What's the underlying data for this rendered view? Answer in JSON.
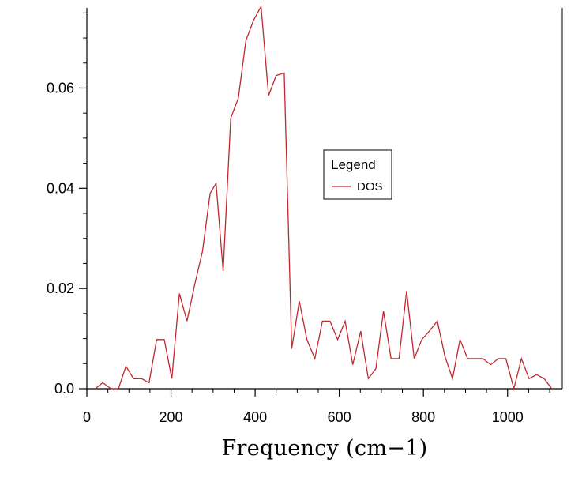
{
  "chart_data": {
    "type": "line",
    "title": "",
    "xlabel": "Frequency (cm−1)",
    "ylabel": "",
    "xlim": [
      0,
      1130
    ],
    "ylim": [
      0,
      0.076
    ],
    "xticks": [
      0,
      200,
      400,
      600,
      800,
      1000
    ],
    "yticks": [
      0.0,
      0.02,
      0.04,
      0.06
    ],
    "xtick_labels": [
      "0",
      "200",
      "400",
      "600",
      "800",
      "1000"
    ],
    "ytick_labels": [
      "0.0",
      "0.02",
      "0.04",
      "0.06"
    ],
    "grid": false,
    "legend": {
      "title": "Legend",
      "placement": "center-right",
      "entries": [
        "DOS"
      ]
    },
    "series": [
      {
        "name": "DOS",
        "color": "#c0282d",
        "x": [
          20,
          38,
          57,
          75,
          93,
          111,
          130,
          148,
          166,
          184,
          202,
          220,
          238,
          257,
          275,
          293,
          307,
          324,
          342,
          360,
          378,
          396,
          414,
          432,
          450,
          469,
          487,
          505,
          523,
          542,
          560,
          578,
          596,
          614,
          632,
          651,
          669,
          687,
          705,
          723,
          742,
          760,
          778,
          796,
          814,
          833,
          851,
          869,
          887,
          905,
          923,
          941,
          960,
          978,
          996,
          1015,
          1033,
          1051,
          1069,
          1087,
          1105
        ],
        "values": [
          0.0,
          0.0012,
          0.0,
          0.0,
          0.0045,
          0.002,
          0.002,
          0.0012,
          0.0098,
          0.0098,
          0.002,
          0.019,
          0.0135,
          0.021,
          0.0275,
          0.039,
          0.041,
          0.0235,
          0.054,
          0.058,
          0.0695,
          0.0735,
          0.0763,
          0.0585,
          0.0625,
          0.063,
          0.008,
          0.0175,
          0.0098,
          0.006,
          0.0135,
          0.0135,
          0.0098,
          0.0135,
          0.0048,
          0.0115,
          0.002,
          0.004,
          0.0155,
          0.006,
          0.006,
          0.0195,
          0.006,
          0.0098,
          0.0115,
          0.0135,
          0.0065,
          0.002,
          0.0098,
          0.006,
          0.006,
          0.006,
          0.0048,
          0.006,
          0.006,
          0.0,
          0.006,
          0.002,
          0.0028,
          0.002,
          0.0
        ]
      }
    ]
  }
}
